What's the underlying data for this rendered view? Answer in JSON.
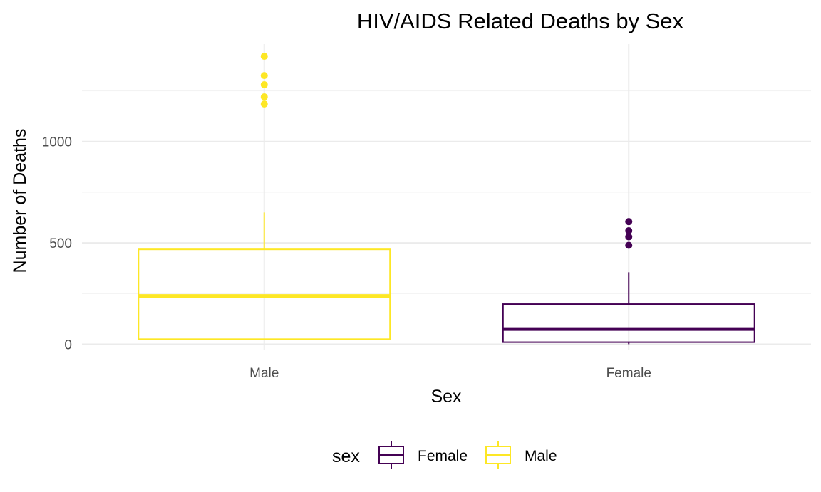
{
  "chart_data": {
    "type": "boxplot",
    "title": "HIV/AIDS Related Deaths by Sex",
    "xlabel": "Sex",
    "ylabel": "Number of Deaths",
    "categories": [
      "Male",
      "Female"
    ],
    "ylim": [
      -30,
      1480
    ],
    "yticks": [
      0,
      500,
      1000
    ],
    "grid": true,
    "legend": {
      "title": "sex",
      "position": "bottom",
      "entries": [
        "Female",
        "Male"
      ]
    },
    "colors": {
      "Male": "#fde725",
      "Female": "#440154"
    },
    "series": [
      {
        "name": "Male",
        "min": 20,
        "q1": 25,
        "median": 238,
        "q3": 468,
        "max": 650,
        "outliers": [
          1185,
          1220,
          1280,
          1325,
          1420
        ]
      },
      {
        "name": "Female",
        "min": 0,
        "q1": 10,
        "median": 75,
        "q3": 198,
        "max": 355,
        "outliers": [
          488,
          530,
          560,
          605
        ]
      }
    ]
  }
}
